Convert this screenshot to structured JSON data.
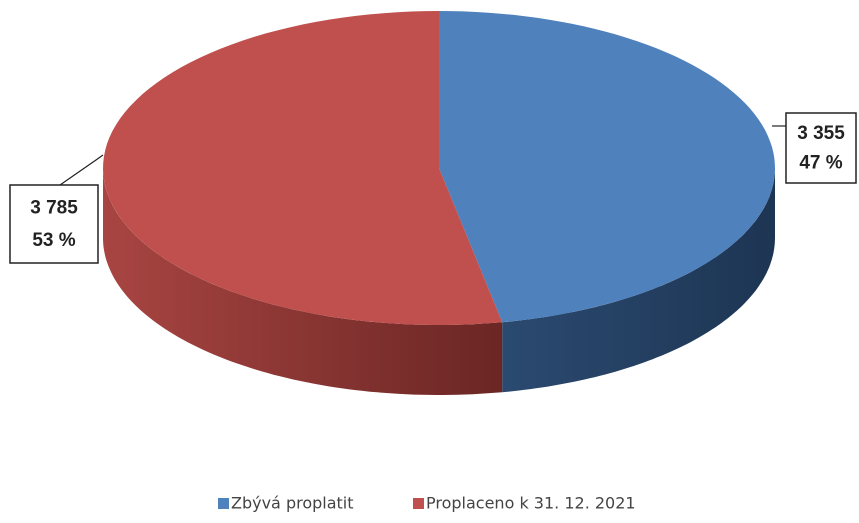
{
  "chart_data": {
    "type": "pie3d",
    "categories": [
      "Zbývá proplatit",
      "Proplaceno k 31. 12. 2021"
    ],
    "values": [
      3355,
      3785
    ],
    "value_labels": [
      "3 355",
      "3 785"
    ],
    "percent_labels": [
      "47 %",
      "53 %"
    ],
    "colors": [
      "#4f81bd",
      "#c0504d"
    ],
    "legend": "bottom"
  }
}
